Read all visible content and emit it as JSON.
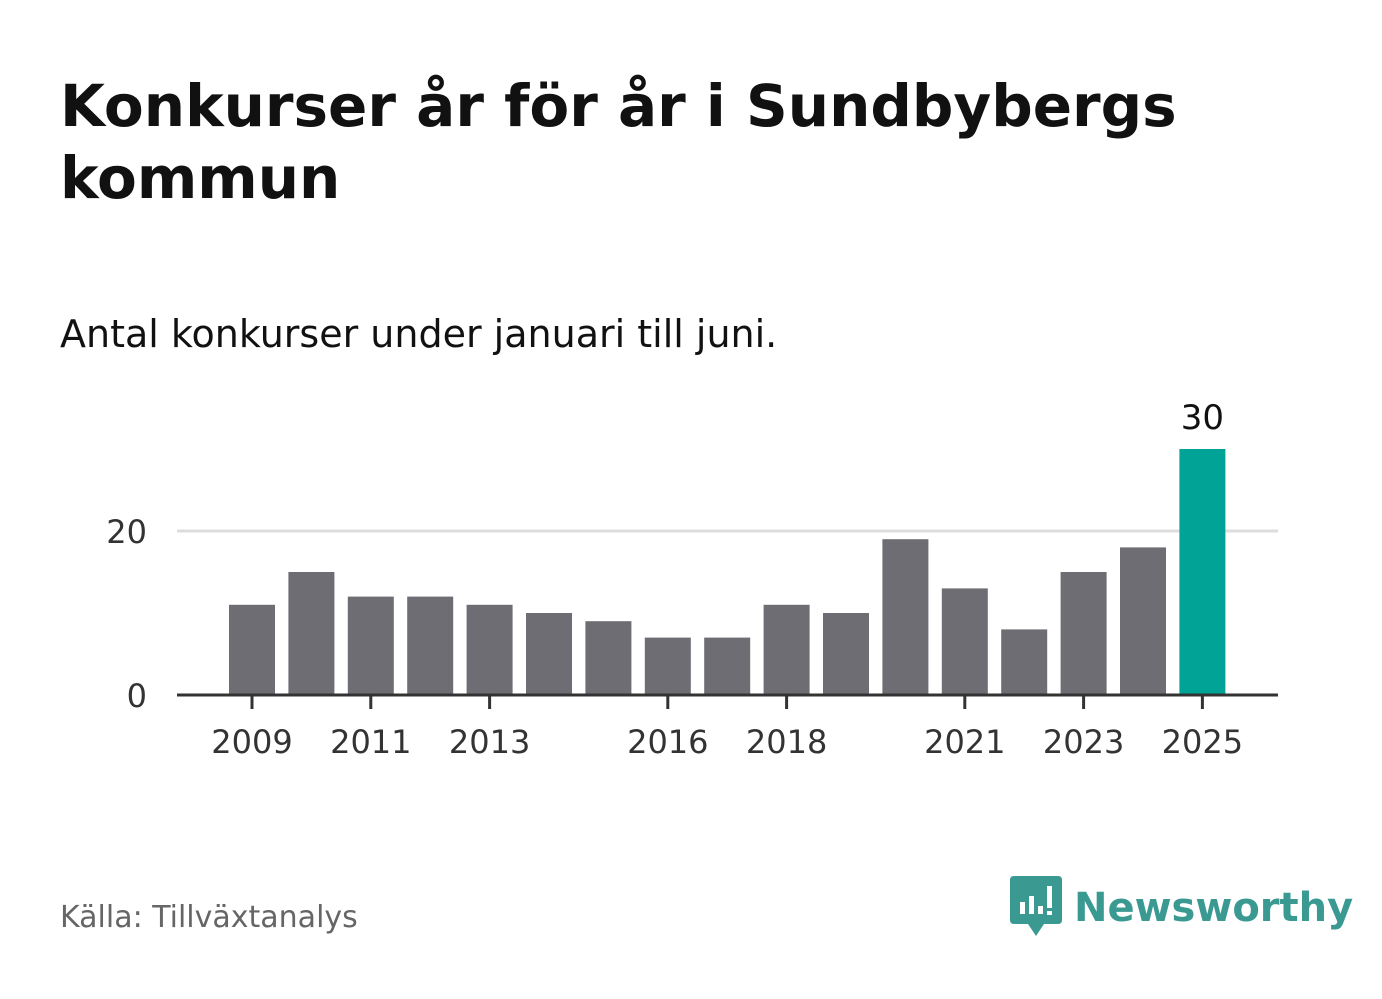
{
  "title": "Konkurser år för år i Sundbybergs kommun",
  "subtitle": "Antal konkurser under januari till juni.",
  "source": "Källa: Tillväxtanalys",
  "brand": {
    "name": "Newsworthy",
    "logo_icon": "chart-speech-bubble-icon",
    "color": "#3a9a92"
  },
  "colors": {
    "bar": "#6e6d73",
    "highlight": "#00a396",
    "gridline": "#dddddd",
    "axis": "#333333"
  },
  "chart_data": {
    "type": "bar",
    "title": "Konkurser år för år i Sundbybergs kommun",
    "subtitle": "Antal konkurser under januari till juni.",
    "categories": [
      "2009",
      "2010",
      "2011",
      "2012",
      "2013",
      "2014",
      "2015",
      "2016",
      "2017",
      "2018",
      "2019",
      "2020",
      "2021",
      "2022",
      "2023",
      "2024",
      "2025"
    ],
    "values": [
      11,
      15,
      12,
      12,
      11,
      10,
      9,
      7,
      7,
      11,
      10,
      19,
      13,
      8,
      15,
      18,
      30
    ],
    "highlight_category": "2025",
    "value_labels": [
      {
        "category": "2025",
        "text": "30"
      }
    ],
    "x_tick_labels": [
      "2009",
      "2011",
      "2013",
      "2016",
      "2018",
      "2021",
      "2023",
      "2025"
    ],
    "y_tick_labels": [
      "0",
      "20"
    ],
    "y_ticks": [
      0,
      20
    ],
    "ylim": [
      0,
      30
    ],
    "grid": true,
    "xlabel": "",
    "ylabel": ""
  }
}
